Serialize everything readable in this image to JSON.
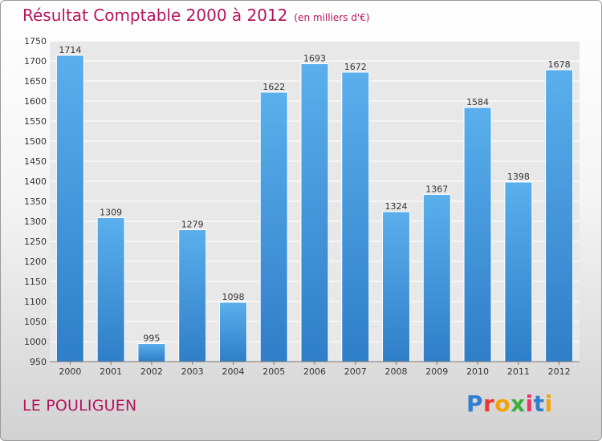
{
  "title": "Résultat Comptable 2000 à 2012",
  "subtitle": "(en milliers d'€)",
  "location": "LE POULIGUEN",
  "logo": {
    "text": "Proxiti",
    "letter_colors": [
      "#2f7fd0",
      "#e53935",
      "#f2a20a",
      "#3cae3c",
      "#e8356b",
      "#2f7fd0",
      "#f2a20a"
    ]
  },
  "colors": {
    "title": "#b5145e",
    "bar_top": "#5aafec",
    "bar_bottom": "#2f7ec8",
    "plot_bg": "#e8e8e8",
    "grid": "#ffffff"
  },
  "chart_data": {
    "type": "bar",
    "title": "Résultat Comptable 2000 à 2012",
    "subtitle": "(en milliers d'€)",
    "xlabel": "",
    "ylabel": "",
    "categories": [
      "2000",
      "2001",
      "2002",
      "2003",
      "2004",
      "2005",
      "2006",
      "2007",
      "2008",
      "2009",
      "2010",
      "2011",
      "2012"
    ],
    "values": [
      1714,
      1309,
      995,
      1279,
      1098,
      1622,
      1693,
      1672,
      1324,
      1367,
      1584,
      1398,
      1678
    ],
    "ylim": [
      950,
      1750
    ],
    "yticks": [
      950,
      1000,
      1050,
      1100,
      1150,
      1200,
      1250,
      1300,
      1350,
      1400,
      1450,
      1500,
      1550,
      1600,
      1650,
      1700,
      1750
    ],
    "grid": true,
    "data_labels": true
  }
}
